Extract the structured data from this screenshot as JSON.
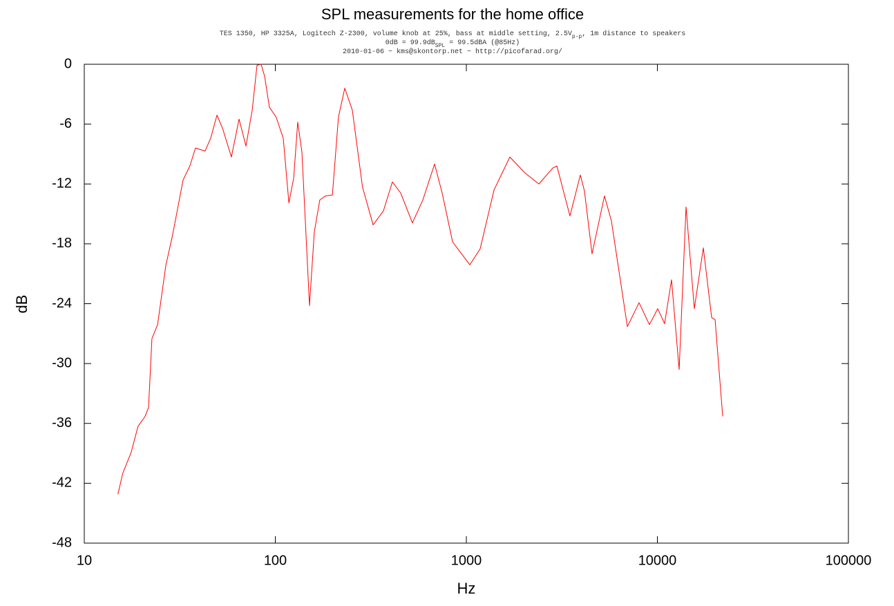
{
  "chart_data": {
    "type": "line",
    "title": "SPL measurements for the home office",
    "subtitle": [
      [
        "TES 1350, HP 3325A, Logitech Z-2300, volume knob at 25%, bass at middle setting, 2.5V",
        "p-p",
        ", 1m distance to speakers"
      ],
      [
        "0dB = 99.9dB",
        "SPL",
        " = 99.5dBA (@85Hz)"
      ],
      [
        "2010-01-06 ~ kms@skontorp.net ~ http://picofarad.org/"
      ]
    ],
    "x_label": "Hz",
    "y_label": "dB",
    "xscale": "log",
    "xlim": [
      10,
      100000
    ],
    "xticks": [
      10,
      100,
      1000,
      10000,
      100000
    ],
    "ylim": [
      -48,
      0
    ],
    "yticks": [
      -48,
      -42,
      -36,
      -30,
      -24,
      -18,
      -12,
      -6,
      0
    ],
    "grid": false,
    "series": [
      {
        "color": "#ff0000",
        "x": [
          15,
          15.9,
          17.6,
          19.1,
          20.8,
          21.7,
          22.6,
          24.2,
          26.7,
          29,
          32.9,
          35.7,
          38.2,
          42.9,
          45.9,
          49.5,
          52.9,
          58.9,
          64.6,
          70.2,
          75.7,
          80.2,
          84.3,
          87.9,
          93.1,
          101,
          110,
          117.8,
          124.8,
          131,
          137.8,
          151,
          160,
          171,
          183,
          199,
          214,
          231,
          253,
          286,
          325,
          368,
          410,
          453,
          522,
          592,
          682,
          747,
          847,
          944,
          1043,
          1181,
          1396,
          1690,
          2029,
          2398,
          2833,
          2979,
          3486,
          3951,
          4151,
          4550,
          5285,
          5745,
          6966,
          8020,
          9085,
          10040,
          10910,
          11860,
          13000,
          14130,
          15610,
          17400,
          19240,
          20050,
          21980
        ],
        "values": [
          -43.1,
          -41,
          -38.9,
          -36.3,
          -35.3,
          -34.4,
          -27.5,
          -26.1,
          -20.2,
          -17.1,
          -11.6,
          -10.2,
          -8.4,
          -8.7,
          -7.4,
          -5.1,
          -6.4,
          -9.3,
          -5.5,
          -8.2,
          -4.6,
          -0.1,
          0,
          -1.2,
          -4.3,
          -5.3,
          -7.4,
          -13.9,
          -11.4,
          -5.8,
          -8.8,
          -24.2,
          -16.8,
          -13.6,
          -13.2,
          -13.1,
          -5.3,
          -2.4,
          -4.6,
          -12.3,
          -16.1,
          -14.7,
          -11.8,
          -12.9,
          -15.9,
          -13.6,
          -10,
          -12.9,
          -17.8,
          -19,
          -20.1,
          -18.5,
          -12.6,
          -9.3,
          -10.9,
          -12,
          -10.4,
          -10.2,
          -15.2,
          -11.1,
          -12.7,
          -19,
          -13.2,
          -15.7,
          -26.3,
          -23.9,
          -26.1,
          -24.5,
          -26,
          -21.6,
          -30.6,
          -14.3,
          -24.5,
          -18.4,
          -25.4,
          -25.6,
          -35.3
        ]
      }
    ]
  }
}
